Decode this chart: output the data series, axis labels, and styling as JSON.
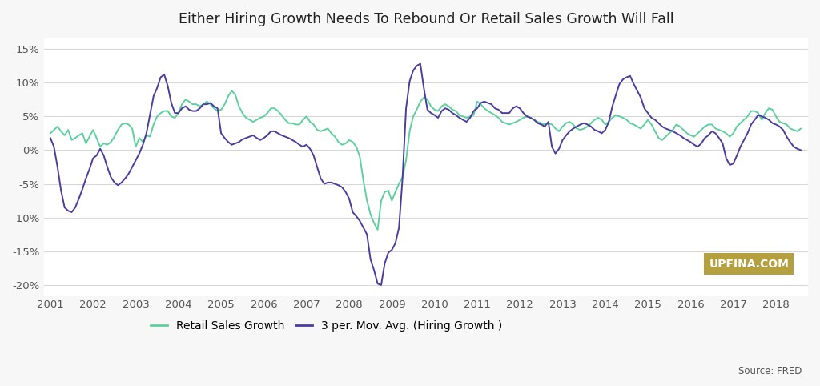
{
  "title": "Either Hiring Growth Needs To Rebound Or Retail Sales Growth Will Fall",
  "background_color": "#f7f7f7",
  "plot_bg_color": "#ffffff",
  "retail_color": "#5ecf9e",
  "hiring_color": "#4a3d9e",
  "ylim": [
    -0.215,
    0.165
  ],
  "yticks": [
    -0.2,
    -0.15,
    -0.1,
    -0.05,
    0.0,
    0.05,
    0.1,
    0.15
  ],
  "legend_labels": [
    "Retail Sales Growth",
    "3 per. Mov. Avg. (Hiring Growth )"
  ],
  "source_text": "Source: FRED",
  "watermark_text": "UPFINA.COM",
  "watermark_bg": "#b5a040",
  "watermark_color": "#ffffff",
  "retail_x": [
    2001.0,
    2001.083,
    2001.167,
    2001.25,
    2001.333,
    2001.417,
    2001.5,
    2001.583,
    2001.667,
    2001.75,
    2001.833,
    2001.917,
    2002.0,
    2002.083,
    2002.167,
    2002.25,
    2002.333,
    2002.417,
    2002.5,
    2002.583,
    2002.667,
    2002.75,
    2002.833,
    2002.917,
    2003.0,
    2003.083,
    2003.167,
    2003.25,
    2003.333,
    2003.417,
    2003.5,
    2003.583,
    2003.667,
    2003.75,
    2003.833,
    2003.917,
    2004.0,
    2004.083,
    2004.167,
    2004.25,
    2004.333,
    2004.417,
    2004.5,
    2004.583,
    2004.667,
    2004.75,
    2004.833,
    2004.917,
    2005.0,
    2005.083,
    2005.167,
    2005.25,
    2005.333,
    2005.417,
    2005.5,
    2005.583,
    2005.667,
    2005.75,
    2005.833,
    2005.917,
    2006.0,
    2006.083,
    2006.167,
    2006.25,
    2006.333,
    2006.417,
    2006.5,
    2006.583,
    2006.667,
    2006.75,
    2006.833,
    2006.917,
    2007.0,
    2007.083,
    2007.167,
    2007.25,
    2007.333,
    2007.417,
    2007.5,
    2007.583,
    2007.667,
    2007.75,
    2007.833,
    2007.917,
    2008.0,
    2008.083,
    2008.167,
    2008.25,
    2008.333,
    2008.417,
    2008.5,
    2008.583,
    2008.667,
    2008.75,
    2008.833,
    2008.917,
    2009.0,
    2009.083,
    2009.167,
    2009.25,
    2009.333,
    2009.417,
    2009.5,
    2009.583,
    2009.667,
    2009.75,
    2009.833,
    2009.917,
    2010.0,
    2010.083,
    2010.167,
    2010.25,
    2010.333,
    2010.417,
    2010.5,
    2010.583,
    2010.667,
    2010.75,
    2010.833,
    2010.917,
    2011.0,
    2011.083,
    2011.167,
    2011.25,
    2011.333,
    2011.417,
    2011.5,
    2011.583,
    2011.667,
    2011.75,
    2011.833,
    2011.917,
    2012.0,
    2012.083,
    2012.167,
    2012.25,
    2012.333,
    2012.417,
    2012.5,
    2012.583,
    2012.667,
    2012.75,
    2012.833,
    2012.917,
    2013.0,
    2013.083,
    2013.167,
    2013.25,
    2013.333,
    2013.417,
    2013.5,
    2013.583,
    2013.667,
    2013.75,
    2013.833,
    2013.917,
    2014.0,
    2014.083,
    2014.167,
    2014.25,
    2014.333,
    2014.417,
    2014.5,
    2014.583,
    2014.667,
    2014.75,
    2014.833,
    2014.917,
    2015.0,
    2015.083,
    2015.167,
    2015.25,
    2015.333,
    2015.417,
    2015.5,
    2015.583,
    2015.667,
    2015.75,
    2015.833,
    2015.917,
    2016.0,
    2016.083,
    2016.167,
    2016.25,
    2016.333,
    2016.417,
    2016.5,
    2016.583,
    2016.667,
    2016.75,
    2016.833,
    2016.917,
    2017.0,
    2017.083,
    2017.167,
    2017.25,
    2017.333,
    2017.417,
    2017.5,
    2017.583,
    2017.667,
    2017.75,
    2017.833,
    2017.917,
    2018.0,
    2018.083,
    2018.167,
    2018.25,
    2018.333,
    2018.417,
    2018.5,
    2018.583
  ],
  "retail_y": [
    0.025,
    0.03,
    0.035,
    0.028,
    0.022,
    0.03,
    0.015,
    0.018,
    0.022,
    0.025,
    0.01,
    0.02,
    0.03,
    0.018,
    0.005,
    0.01,
    0.008,
    0.012,
    0.02,
    0.03,
    0.038,
    0.04,
    0.038,
    0.032,
    0.005,
    0.018,
    0.012,
    0.022,
    0.02,
    0.038,
    0.05,
    0.055,
    0.058,
    0.058,
    0.05,
    0.048,
    0.055,
    0.068,
    0.075,
    0.072,
    0.068,
    0.068,
    0.065,
    0.068,
    0.072,
    0.068,
    0.062,
    0.058,
    0.06,
    0.068,
    0.08,
    0.088,
    0.082,
    0.065,
    0.055,
    0.048,
    0.045,
    0.042,
    0.045,
    0.048,
    0.05,
    0.055,
    0.062,
    0.062,
    0.058,
    0.052,
    0.045,
    0.04,
    0.04,
    0.038,
    0.038,
    0.045,
    0.05,
    0.042,
    0.038,
    0.03,
    0.028,
    0.03,
    0.032,
    0.025,
    0.02,
    0.012,
    0.008,
    0.01,
    0.015,
    0.012,
    0.005,
    -0.01,
    -0.045,
    -0.075,
    -0.095,
    -0.108,
    -0.118,
    -0.075,
    -0.062,
    -0.06,
    -0.075,
    -0.062,
    -0.05,
    -0.04,
    -0.015,
    0.028,
    0.05,
    0.06,
    0.072,
    0.078,
    0.075,
    0.065,
    0.06,
    0.058,
    0.065,
    0.068,
    0.065,
    0.06,
    0.058,
    0.052,
    0.05,
    0.048,
    0.05,
    0.052,
    0.072,
    0.068,
    0.062,
    0.058,
    0.055,
    0.052,
    0.048,
    0.042,
    0.04,
    0.038,
    0.04,
    0.042,
    0.045,
    0.048,
    0.05,
    0.048,
    0.045,
    0.042,
    0.04,
    0.038,
    0.04,
    0.038,
    0.032,
    0.028,
    0.035,
    0.04,
    0.042,
    0.038,
    0.032,
    0.03,
    0.032,
    0.035,
    0.04,
    0.045,
    0.048,
    0.045,
    0.038,
    0.042,
    0.048,
    0.052,
    0.05,
    0.048,
    0.045,
    0.04,
    0.038,
    0.035,
    0.032,
    0.038,
    0.045,
    0.038,
    0.028,
    0.018,
    0.015,
    0.02,
    0.025,
    0.03,
    0.038,
    0.035,
    0.03,
    0.025,
    0.022,
    0.02,
    0.025,
    0.03,
    0.035,
    0.038,
    0.038,
    0.032,
    0.03,
    0.028,
    0.025,
    0.02,
    0.025,
    0.035,
    0.04,
    0.045,
    0.05,
    0.058,
    0.058,
    0.055,
    0.045,
    0.055,
    0.062,
    0.06,
    0.05,
    0.042,
    0.04,
    0.038,
    0.032,
    0.03,
    0.028,
    0.032
  ],
  "hiring_x": [
    2001.0,
    2001.083,
    2001.167,
    2001.25,
    2001.333,
    2001.417,
    2001.5,
    2001.583,
    2001.667,
    2001.75,
    2001.833,
    2001.917,
    2002.0,
    2002.083,
    2002.167,
    2002.25,
    2002.333,
    2002.417,
    2002.5,
    2002.583,
    2002.667,
    2002.75,
    2002.833,
    2002.917,
    2003.0,
    2003.083,
    2003.167,
    2003.25,
    2003.333,
    2003.417,
    2003.5,
    2003.583,
    2003.667,
    2003.75,
    2003.833,
    2003.917,
    2004.0,
    2004.083,
    2004.167,
    2004.25,
    2004.333,
    2004.417,
    2004.5,
    2004.583,
    2004.667,
    2004.75,
    2004.833,
    2004.917,
    2005.0,
    2005.083,
    2005.167,
    2005.25,
    2005.333,
    2005.417,
    2005.5,
    2005.583,
    2005.667,
    2005.75,
    2005.833,
    2005.917,
    2006.0,
    2006.083,
    2006.167,
    2006.25,
    2006.333,
    2006.417,
    2006.5,
    2006.583,
    2006.667,
    2006.75,
    2006.833,
    2006.917,
    2007.0,
    2007.083,
    2007.167,
    2007.25,
    2007.333,
    2007.417,
    2007.5,
    2007.583,
    2007.667,
    2007.75,
    2007.833,
    2007.917,
    2008.0,
    2008.083,
    2008.167,
    2008.25,
    2008.333,
    2008.417,
    2008.5,
    2008.583,
    2008.667,
    2008.75,
    2008.833,
    2008.917,
    2009.0,
    2009.083,
    2009.167,
    2009.25,
    2009.333,
    2009.417,
    2009.5,
    2009.583,
    2009.667,
    2009.75,
    2009.833,
    2009.917,
    2010.0,
    2010.083,
    2010.167,
    2010.25,
    2010.333,
    2010.417,
    2010.5,
    2010.583,
    2010.667,
    2010.75,
    2010.833,
    2010.917,
    2011.0,
    2011.083,
    2011.167,
    2011.25,
    2011.333,
    2011.417,
    2011.5,
    2011.583,
    2011.667,
    2011.75,
    2011.833,
    2011.917,
    2012.0,
    2012.083,
    2012.167,
    2012.25,
    2012.333,
    2012.417,
    2012.5,
    2012.583,
    2012.667,
    2012.75,
    2012.833,
    2012.917,
    2013.0,
    2013.083,
    2013.167,
    2013.25,
    2013.333,
    2013.417,
    2013.5,
    2013.583,
    2013.667,
    2013.75,
    2013.833,
    2013.917,
    2014.0,
    2014.083,
    2014.167,
    2014.25,
    2014.333,
    2014.417,
    2014.5,
    2014.583,
    2014.667,
    2014.75,
    2014.833,
    2014.917,
    2015.0,
    2015.083,
    2015.167,
    2015.25,
    2015.333,
    2015.417,
    2015.5,
    2015.583,
    2015.667,
    2015.75,
    2015.833,
    2015.917,
    2016.0,
    2016.083,
    2016.167,
    2016.25,
    2016.333,
    2016.417,
    2016.5,
    2016.583,
    2016.667,
    2016.75,
    2016.833,
    2016.917,
    2017.0,
    2017.083,
    2017.167,
    2017.25,
    2017.333,
    2017.417,
    2017.5,
    2017.583,
    2017.667,
    2017.75,
    2017.833,
    2017.917,
    2018.0,
    2018.083,
    2018.167,
    2018.25,
    2018.333,
    2018.417,
    2018.5,
    2018.583
  ],
  "hiring_y": [
    0.018,
    0.005,
    -0.025,
    -0.06,
    -0.085,
    -0.09,
    -0.092,
    -0.085,
    -0.072,
    -0.058,
    -0.042,
    -0.028,
    -0.012,
    -0.008,
    0.002,
    -0.008,
    -0.025,
    -0.04,
    -0.048,
    -0.052,
    -0.048,
    -0.042,
    -0.035,
    -0.025,
    -0.015,
    -0.005,
    0.008,
    0.025,
    0.052,
    0.08,
    0.092,
    0.108,
    0.112,
    0.095,
    0.07,
    0.055,
    0.055,
    0.062,
    0.065,
    0.06,
    0.058,
    0.058,
    0.062,
    0.068,
    0.068,
    0.07,
    0.065,
    0.062,
    0.025,
    0.018,
    0.012,
    0.008,
    0.01,
    0.012,
    0.016,
    0.018,
    0.02,
    0.022,
    0.018,
    0.015,
    0.018,
    0.022,
    0.028,
    0.028,
    0.025,
    0.022,
    0.02,
    0.018,
    0.015,
    0.012,
    0.008,
    0.005,
    0.008,
    0.002,
    -0.008,
    -0.025,
    -0.042,
    -0.05,
    -0.048,
    -0.048,
    -0.05,
    -0.052,
    -0.055,
    -0.062,
    -0.072,
    -0.092,
    -0.098,
    -0.105,
    -0.115,
    -0.125,
    -0.162,
    -0.178,
    -0.198,
    -0.2,
    -0.168,
    -0.152,
    -0.148,
    -0.138,
    -0.115,
    -0.042,
    0.062,
    0.102,
    0.118,
    0.125,
    0.128,
    0.092,
    0.06,
    0.055,
    0.052,
    0.048,
    0.058,
    0.062,
    0.06,
    0.055,
    0.052,
    0.048,
    0.045,
    0.042,
    0.048,
    0.058,
    0.062,
    0.07,
    0.072,
    0.07,
    0.068,
    0.062,
    0.06,
    0.055,
    0.055,
    0.055,
    0.062,
    0.065,
    0.062,
    0.055,
    0.05,
    0.048,
    0.045,
    0.04,
    0.038,
    0.035,
    0.042,
    0.005,
    -0.005,
    0.002,
    0.015,
    0.022,
    0.028,
    0.032,
    0.035,
    0.038,
    0.04,
    0.038,
    0.035,
    0.03,
    0.028,
    0.025,
    0.03,
    0.042,
    0.065,
    0.082,
    0.098,
    0.105,
    0.108,
    0.11,
    0.098,
    0.088,
    0.078,
    0.062,
    0.055,
    0.048,
    0.045,
    0.04,
    0.035,
    0.032,
    0.03,
    0.028,
    0.025,
    0.022,
    0.018,
    0.015,
    0.012,
    0.008,
    0.005,
    0.01,
    0.018,
    0.022,
    0.028,
    0.025,
    0.018,
    0.01,
    -0.012,
    -0.022,
    -0.02,
    -0.008,
    0.005,
    0.015,
    0.025,
    0.038,
    0.045,
    0.052,
    0.05,
    0.048,
    0.045,
    0.04,
    0.038,
    0.035,
    0.03,
    0.02,
    0.012,
    0.005,
    0.002,
    0.0
  ]
}
